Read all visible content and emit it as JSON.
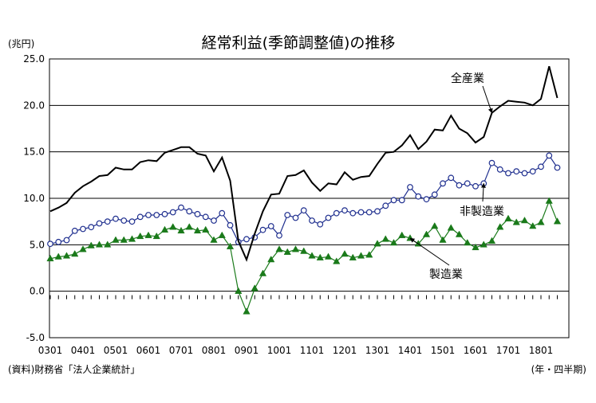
{
  "chart_data": {
    "type": "line",
    "title": "経常利益(季節調整値)の推移",
    "yunit": "(兆円)",
    "xunit": "(年・四半期)",
    "source": "(資料)財務省「法人企業統計」",
    "ylim": [
      -5,
      25
    ],
    "yticks": [
      "25.0",
      "20.0",
      "15.0",
      "10.0",
      "5.0",
      "0.0",
      "-5.0"
    ],
    "xticks": [
      "0301",
      "0401",
      "0501",
      "0601",
      "0701",
      "0801",
      "0901",
      "1001",
      "1101",
      "1201",
      "1301",
      "1401",
      "1501",
      "1601",
      "1701",
      "1801"
    ],
    "legend_position": "inline labels",
    "series": [
      {
        "name": "全産業",
        "color": "#000000",
        "marker": "none",
        "values": [
          8.6,
          9.0,
          9.5,
          10.6,
          11.3,
          11.8,
          12.4,
          12.5,
          13.3,
          13.1,
          13.1,
          13.9,
          14.1,
          14.0,
          14.9,
          15.2,
          15.5,
          15.5,
          14.8,
          14.6,
          12.9,
          14.4,
          11.9,
          5.4,
          3.4,
          6.2,
          8.6,
          10.4,
          10.5,
          12.4,
          12.5,
          13.0,
          11.7,
          10.8,
          11.6,
          11.5,
          12.8,
          12.0,
          12.3,
          12.4,
          13.7,
          14.9,
          15.0,
          15.7,
          16.8,
          15.3,
          16.1,
          17.4,
          17.3,
          18.9,
          17.5,
          17.0,
          16.0,
          16.6,
          19.2,
          19.9,
          20.5,
          20.4,
          20.3,
          20.0,
          20.7,
          24.2,
          20.8
        ]
      },
      {
        "name": "非製造業",
        "color": "#1f2f8f",
        "marker": "open-circle",
        "values": [
          5.1,
          5.3,
          5.5,
          6.5,
          6.7,
          6.9,
          7.3,
          7.5,
          7.8,
          7.6,
          7.5,
          8.0,
          8.2,
          8.2,
          8.3,
          8.5,
          9.0,
          8.6,
          8.3,
          8.0,
          7.6,
          8.4,
          7.1,
          5.3,
          5.6,
          5.8,
          6.6,
          7.0,
          6.0,
          8.2,
          7.9,
          8.7,
          7.6,
          7.2,
          7.9,
          8.4,
          8.7,
          8.4,
          8.5,
          8.5,
          8.6,
          9.2,
          9.8,
          9.8,
          11.2,
          10.2,
          9.9,
          10.4,
          11.6,
          12.2,
          11.4,
          11.6,
          11.3,
          11.6,
          13.8,
          13.1,
          12.7,
          12.9,
          12.7,
          12.9,
          13.4,
          14.6,
          13.3
        ]
      },
      {
        "name": "製造業",
        "color": "#1a7a1a",
        "marker": "filled-triangle",
        "values": [
          3.5,
          3.7,
          3.8,
          4.0,
          4.5,
          4.9,
          5.0,
          5.0,
          5.5,
          5.5,
          5.6,
          5.9,
          6.0,
          5.9,
          6.6,
          6.9,
          6.5,
          6.9,
          6.5,
          6.6,
          5.5,
          6.0,
          4.8,
          0.0,
          -2.2,
          0.3,
          1.9,
          3.4,
          4.5,
          4.2,
          4.5,
          4.3,
          3.8,
          3.6,
          3.7,
          3.2,
          4.0,
          3.6,
          3.8,
          3.9,
          5.1,
          5.6,
          5.2,
          6.0,
          5.7,
          5.1,
          6.1,
          7.0,
          5.5,
          6.8,
          6.1,
          5.2,
          4.7,
          5.0,
          5.4,
          6.9,
          7.8,
          7.4,
          7.6,
          7.0,
          7.4,
          9.7,
          7.5
        ]
      }
    ],
    "labels": {
      "all": "全産業",
      "nonmfg": "非製造業",
      "mfg": "製造業"
    }
  }
}
